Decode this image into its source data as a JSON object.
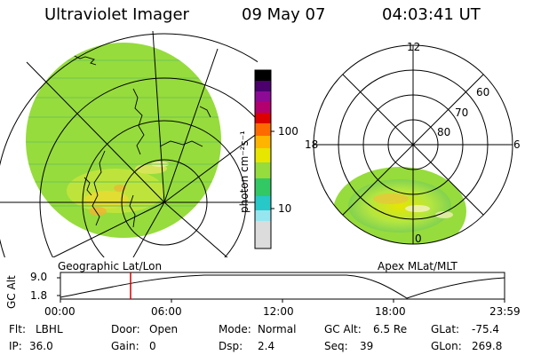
{
  "header": {
    "instrument": "Ultraviolet Imager",
    "date": "09 May 07",
    "time": "04:03:41 UT"
  },
  "colorbar": {
    "unit_label": "photon cm⁻²s⁻¹",
    "ticks": [
      "100",
      "10"
    ],
    "colors": [
      "#000000",
      "#4b006e",
      "#8c0a96",
      "#b4006e",
      "#dc0000",
      "#ff6a00",
      "#ffb400",
      "#e6e600",
      "#96dc3c",
      "#32c864",
      "#28c8c8",
      "#dcdcdc"
    ]
  },
  "left_map": {
    "caption": "Geographic Lat/Lon"
  },
  "right_map": {
    "caption": "Apex MLat/MLT",
    "mlt_labels": {
      "top": "12",
      "left": "18",
      "right": "6",
      "bottom": "0"
    },
    "lat_labels": [
      "60",
      "70",
      "80"
    ]
  },
  "altitude_plot": {
    "ylabel": "GC Alt",
    "yticks": [
      "9.0",
      "1.8"
    ],
    "xticks": [
      "00:00",
      "06:00",
      "12:00",
      "18:00",
      "23:59"
    ],
    "current_time_marker": "04:03:41"
  },
  "info": {
    "flt_label": "Flt:",
    "flt_value": "LBHL",
    "door_label": "Door:",
    "door_value": "Open",
    "mode_label": "Mode:",
    "mode_value": "Normal",
    "gcalt_label": "GC Alt:",
    "gcalt_value": "6.5 Re",
    "glat_label": "GLat:",
    "glat_value": "-75.4",
    "ip_label": "IP:",
    "ip_value": "36.0",
    "gain_label": "Gain:",
    "gain_value": "0",
    "dsp_label": "Dsp:",
    "dsp_value": "2.4",
    "seq_label": "Seq:",
    "seq_value": "39",
    "glon_label": "GLon:",
    "glon_value": "269.8"
  }
}
